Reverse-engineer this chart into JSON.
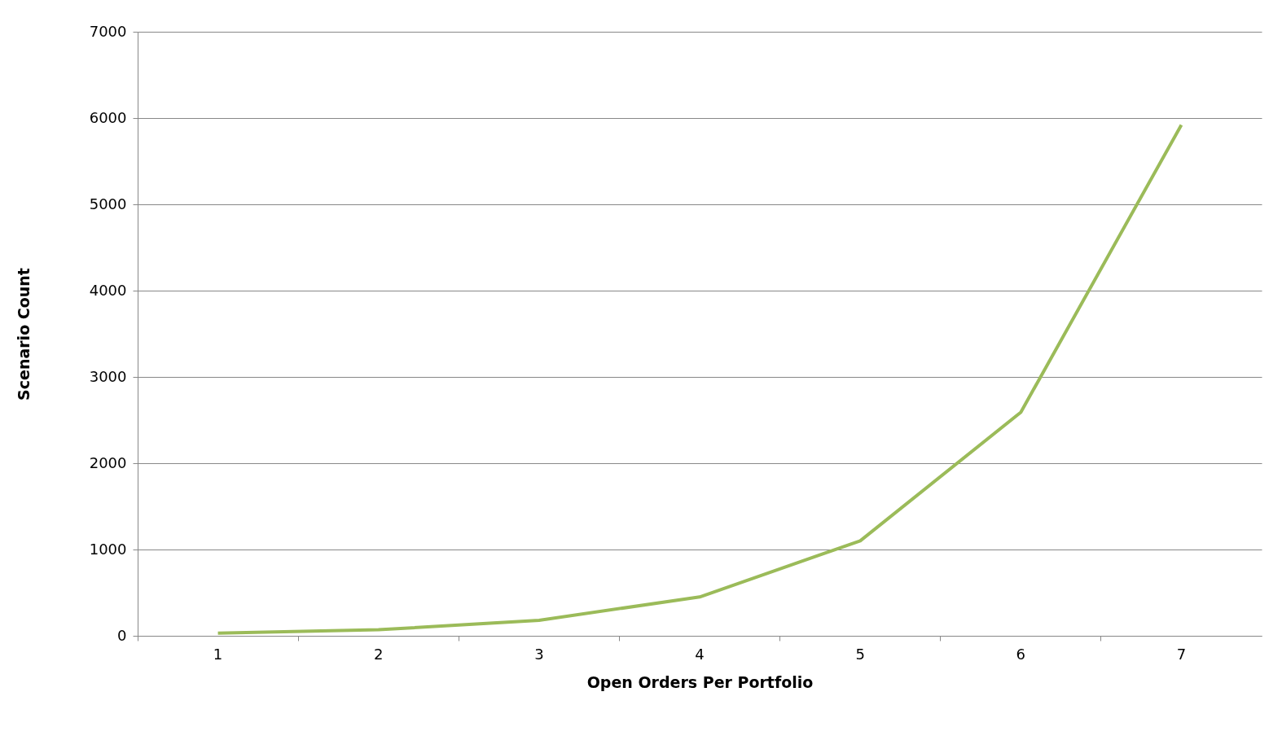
{
  "chart_data": {
    "type": "line",
    "xlabel": "Open Orders Per Portfolio",
    "ylabel": "Scenario  Count",
    "categories": [
      "1",
      "2",
      "3",
      "4",
      "5",
      "6",
      "7"
    ],
    "series": [
      {
        "color": "#9bbb59",
        "values": [
          30,
          70,
          180,
          450,
          1100,
          2590,
          5920
        ]
      }
    ],
    "ylim": [
      0,
      7000
    ],
    "yticks": [
      0,
      1000,
      2000,
      3000,
      4000,
      5000,
      6000,
      7000
    ],
    "grid": "y",
    "marker": "none",
    "line_style": "solid"
  }
}
